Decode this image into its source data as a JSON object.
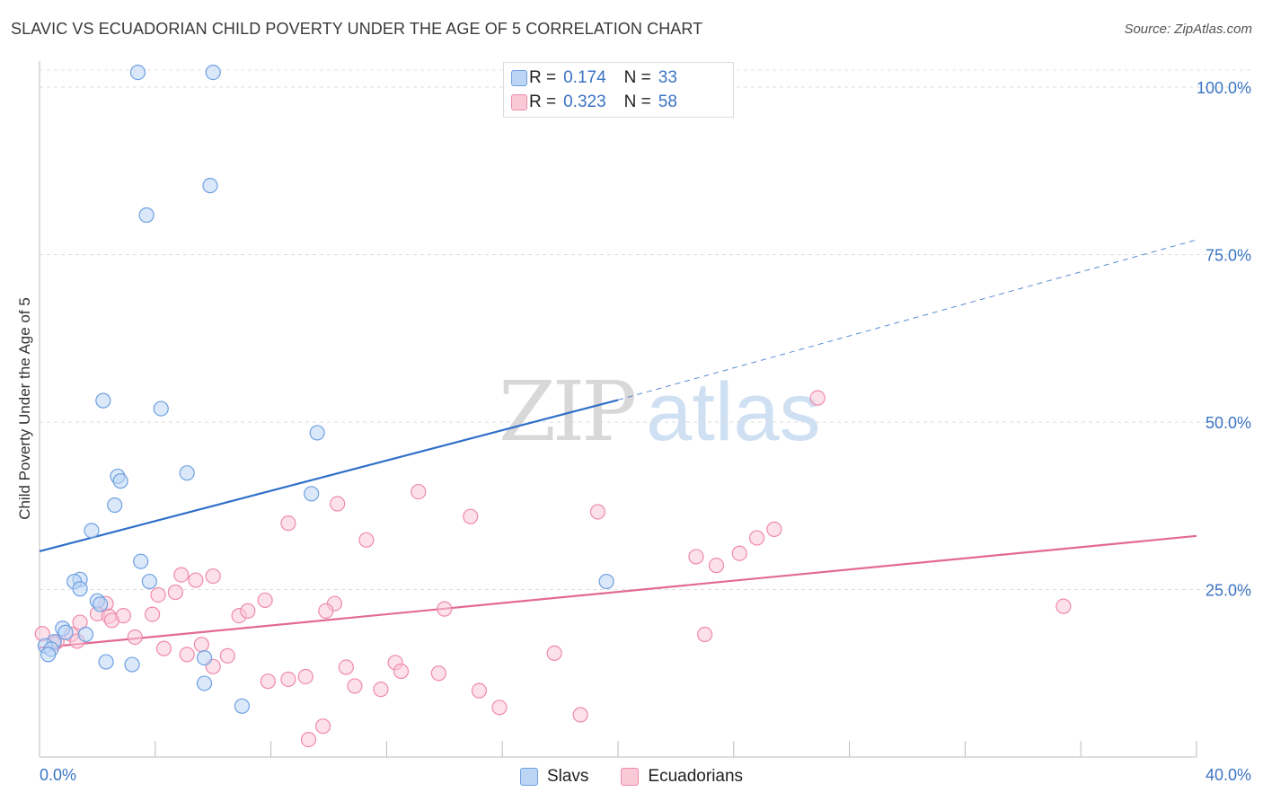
{
  "title": "SLAVIC VS ECUADORIAN CHILD POVERTY UNDER THE AGE OF 5 CORRELATION CHART",
  "source": "Source: ZipAtlas.com",
  "watermark": {
    "zip": "ZIP",
    "atlas": "atlas"
  },
  "legend": {
    "rows": [
      {
        "r_label": "R =",
        "r_value": "0.174",
        "n_label": "N =",
        "n_value": "33",
        "color": "#6fa0e0"
      },
      {
        "r_label": "R =",
        "r_value": "0.323",
        "n_label": "N =",
        "n_value": "58",
        "color": "#f29bb6"
      }
    ]
  },
  "chart_data": {
    "type": "scatter",
    "title": "SLAVIC VS ECUADORIAN CHILD POVERTY UNDER THE AGE OF 5 CORRELATION CHART",
    "xlabel": "",
    "ylabel": "Child Poverty Under the Age of 5",
    "xlim": [
      0,
      40
    ],
    "ylim": [
      0,
      100
    ],
    "x_tick_labels": [
      "0.0%",
      "40.0%"
    ],
    "y_tick_labels": [
      "25.0%",
      "50.0%",
      "75.0%",
      "100.0%"
    ],
    "y_ticks": [
      25,
      50,
      75,
      100
    ],
    "grid": true,
    "legend_position": "top-center",
    "series": [
      {
        "name": "Slavs",
        "color": "#6fa0e0",
        "fill": "#bcd5f5",
        "points": [
          [
            3.4,
            102.2
          ],
          [
            6.0,
            102.2
          ],
          [
            5.9,
            85.3
          ],
          [
            3.7,
            80.9
          ],
          [
            2.2,
            53.2
          ],
          [
            4.2,
            52.0
          ],
          [
            9.6,
            48.4
          ],
          [
            5.1,
            42.4
          ],
          [
            2.7,
            41.9
          ],
          [
            2.8,
            41.2
          ],
          [
            2.6,
            37.6
          ],
          [
            9.4,
            39.3
          ],
          [
            1.8,
            33.8
          ],
          [
            3.5,
            29.2
          ],
          [
            1.4,
            26.5
          ],
          [
            1.2,
            26.2
          ],
          [
            1.4,
            25.1
          ],
          [
            3.8,
            26.2
          ],
          [
            19.6,
            26.2
          ],
          [
            2.0,
            23.3
          ],
          [
            2.1,
            22.8
          ],
          [
            0.8,
            19.2
          ],
          [
            1.6,
            18.3
          ],
          [
            0.9,
            18.6
          ],
          [
            0.5,
            17.2
          ],
          [
            0.2,
            16.6
          ],
          [
            0.4,
            16.1
          ],
          [
            0.3,
            15.3
          ],
          [
            2.3,
            14.2
          ],
          [
            3.2,
            13.8
          ],
          [
            5.7,
            14.8
          ],
          [
            5.7,
            11.0
          ],
          [
            7.0,
            7.6
          ]
        ]
      },
      {
        "name": "Ecuadorians",
        "color": "#ef8aaa",
        "fill": "#f9c9d8",
        "points": [
          [
            0.1,
            18.4
          ],
          [
            0.6,
            17.2
          ],
          [
            0.5,
            16.9
          ],
          [
            1.1,
            18.3
          ],
          [
            1.3,
            17.3
          ],
          [
            1.4,
            20.1
          ],
          [
            2.0,
            21.4
          ],
          [
            2.3,
            22.9
          ],
          [
            2.4,
            21.0
          ],
          [
            2.5,
            20.4
          ],
          [
            2.9,
            21.1
          ],
          [
            3.3,
            17.9
          ],
          [
            3.9,
            21.3
          ],
          [
            4.1,
            24.2
          ],
          [
            4.7,
            24.6
          ],
          [
            4.9,
            27.2
          ],
          [
            5.4,
            26.4
          ],
          [
            6.0,
            27.0
          ],
          [
            6.9,
            21.1
          ],
          [
            7.2,
            21.8
          ],
          [
            5.6,
            16.8
          ],
          [
            4.3,
            16.2
          ],
          [
            5.1,
            15.3
          ],
          [
            6.0,
            13.5
          ],
          [
            6.5,
            15.1
          ],
          [
            7.8,
            23.4
          ],
          [
            8.6,
            34.9
          ],
          [
            10.3,
            37.8
          ],
          [
            10.2,
            22.9
          ],
          [
            11.3,
            32.4
          ],
          [
            13.1,
            39.6
          ],
          [
            14.0,
            22.1
          ],
          [
            14.9,
            35.9
          ],
          [
            17.8,
            15.5
          ],
          [
            19.3,
            36.6
          ],
          [
            22.7,
            29.9
          ],
          [
            23.4,
            28.6
          ],
          [
            24.2,
            30.4
          ],
          [
            24.8,
            32.7
          ],
          [
            25.4,
            34.0
          ],
          [
            23.0,
            18.3
          ],
          [
            26.9,
            53.6
          ],
          [
            35.4,
            22.5
          ],
          [
            7.9,
            11.3
          ],
          [
            8.6,
            11.6
          ],
          [
            9.2,
            12.0
          ],
          [
            10.6,
            13.4
          ],
          [
            10.9,
            10.6
          ],
          [
            11.8,
            10.1
          ],
          [
            12.3,
            14.1
          ],
          [
            12.5,
            12.8
          ],
          [
            13.8,
            12.5
          ],
          [
            15.2,
            9.9
          ],
          [
            15.9,
            7.4
          ],
          [
            9.3,
            2.6
          ],
          [
            9.8,
            4.6
          ],
          [
            18.7,
            6.3
          ],
          [
            9.9,
            21.8
          ]
        ]
      }
    ],
    "trend_lines": [
      {
        "series": "Slavs",
        "x_start": 0,
        "y_start": 30.7,
        "x_solid_end": 20.0,
        "y_solid_end": 53.3,
        "x_end": 40,
        "y_end": 77.2,
        "solid": "0-20",
        "dashed": "20-40",
        "color": "#2f6fc9"
      },
      {
        "series": "Ecuadorians",
        "x_start": 0,
        "y_start": 16.3,
        "x_end": 40,
        "y_end": 33.0,
        "color": "#e26a92"
      }
    ]
  }
}
